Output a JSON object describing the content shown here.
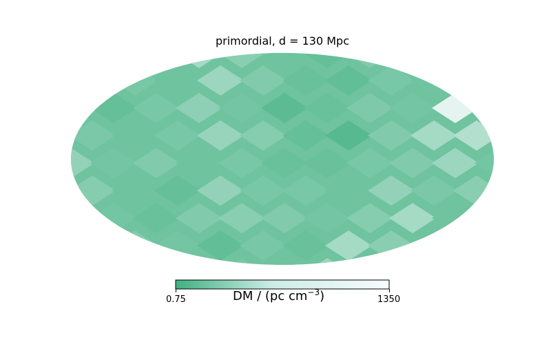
{
  "chart_data": {
    "type": "heatmap",
    "projection": "mollweide",
    "title": "primordial, d = 130 Mpc",
    "colorbar": {
      "min_label": "0.75",
      "max_label": "1350",
      "label_main": "DM / (pc cm",
      "label_exp": "−3",
      "label_close": ")",
      "scale": "log",
      "colors": [
        "#41b080",
        "#f7fcfd"
      ]
    },
    "cell_levels": [
      0.18,
      0.3,
      0.22,
      0.55,
      0.4,
      0.25,
      0.2,
      0.35,
      0.28,
      0.15,
      0.2,
      0.45,
      0.3,
      0.25,
      0.5,
      0.35,
      0.22,
      0.18,
      0.3,
      0.26,
      0.6,
      0.25,
      0.35,
      0.2,
      0.3,
      0.42,
      0.28,
      0.15,
      0.22,
      0.33,
      0.28,
      0.9,
      0.4,
      0.32,
      0.25,
      0.3,
      0.48,
      0.38,
      0.2,
      0.12,
      0.35,
      0.55,
      0.62,
      0.3,
      0.45,
      0.28,
      0.35,
      0.25,
      0.3,
      0.22,
      0.22,
      0.3,
      0.35,
      0.5,
      0.28,
      0.38,
      0.25,
      0.2,
      0.45,
      0.3,
      0.3,
      0.25,
      0.45,
      0.32,
      0.4,
      0.3,
      0.35,
      0.28,
      0.22,
      0.35,
      0.4,
      0.35,
      0.28,
      0.38,
      0.55,
      0.25,
      0.3,
      0.5,
      0.35,
      0.28
    ]
  }
}
